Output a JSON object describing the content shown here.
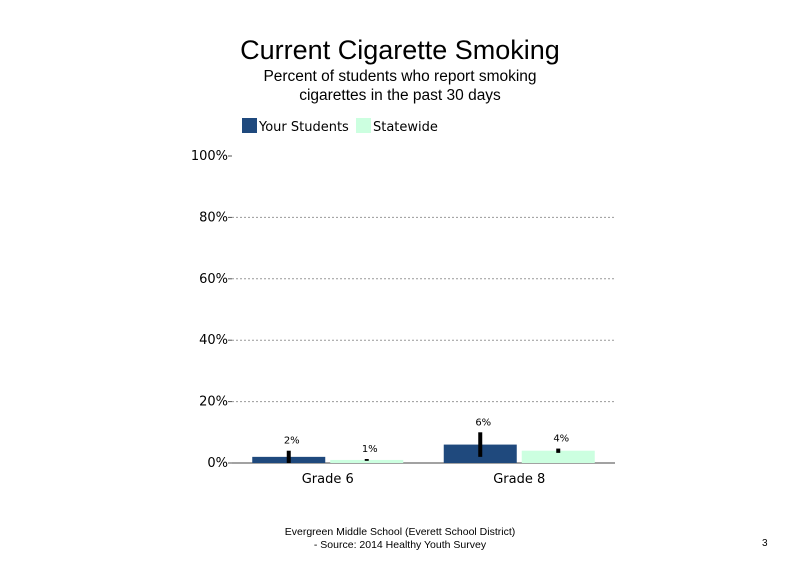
{
  "slide": {
    "title": "Current Cigarette Smoking",
    "subtitle": "Percent of students who report smoking cigarettes in the past 30 days",
    "footer_line1": "Evergreen Middle School (Everett School District)",
    "footer_line2": "- Source: 2014 Healthy Youth Survey",
    "page_number": "3"
  },
  "colors": {
    "your_students": "#1F497D",
    "statewide": "#CCFFE0",
    "error_bar": "#000000",
    "grid": "#999999"
  },
  "chart_data": {
    "type": "bar",
    "title": "Current Cigarette Smoking",
    "subtitle": "Percent of students who report smoking cigarettes in the past 30 days",
    "categories": [
      "Grade 6",
      "Grade 8"
    ],
    "series": [
      {
        "name": "Your Students",
        "values": [
          2,
          6
        ],
        "labels": [
          "2%",
          "6%"
        ],
        "error_low": [
          0,
          2
        ],
        "error_high": [
          4,
          10
        ]
      },
      {
        "name": "Statewide",
        "values": [
          1,
          4
        ],
        "labels": [
          "1%",
          "4%"
        ],
        "error_low": [
          0.7,
          3.3
        ],
        "error_high": [
          1.3,
          4.7
        ]
      }
    ],
    "ylim": [
      0,
      100
    ],
    "yticks": [
      0,
      20,
      40,
      60,
      80,
      100
    ],
    "ytick_labels": [
      "0%",
      "20%",
      "40%",
      "60%",
      "80%",
      "100%"
    ],
    "legend_position": "top-left",
    "grid": true
  }
}
